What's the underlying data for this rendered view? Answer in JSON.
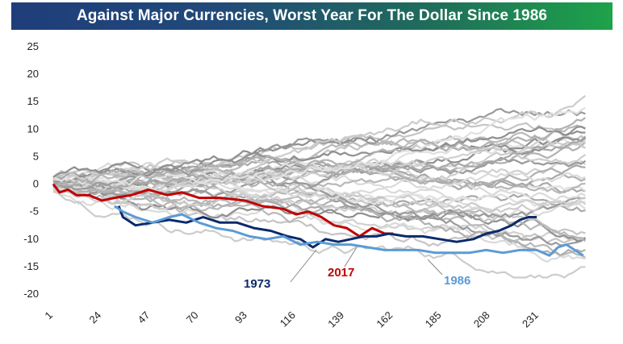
{
  "chart_data": {
    "type": "line",
    "title": "Against Major Currencies, Worst Year For The Dollar Since 1986",
    "xlabel": "",
    "ylabel": "",
    "xlim": [
      1,
      254
    ],
    "ylim": [
      -20,
      25
    ],
    "y_ticks": [
      "25",
      "20",
      "15",
      "10",
      "5",
      "0",
      "-5",
      "-10",
      "-15",
      "-20"
    ],
    "x_ticks": [
      "1",
      "24",
      "47",
      "70",
      "93",
      "116",
      "139",
      "162",
      "185",
      "208",
      "231"
    ],
    "gridlines": false,
    "legend": "none",
    "highlighted_series": [
      {
        "name": "2017",
        "color": "#c00000",
        "x": [
          1,
          4,
          8,
          12,
          18,
          24,
          30,
          38,
          46,
          55,
          62,
          70,
          80,
          92,
          100,
          110,
          116,
          122,
          128,
          134,
          140,
          146,
          152,
          158,
          162
        ],
        "values": [
          0,
          -1.5,
          -1,
          -2,
          -2,
          -3,
          -2.5,
          -2,
          -1,
          -2,
          -1.5,
          -2.5,
          -2.5,
          -3,
          -4,
          -4.5,
          -5.5,
          -5,
          -6,
          -7.5,
          -8,
          -9.5,
          -8,
          -9,
          -9
        ]
      },
      {
        "name": "1973",
        "color": "#0b2a6b",
        "x": [
          32,
          34,
          36,
          40,
          48,
          56,
          64,
          72,
          80,
          88,
          96,
          104,
          112,
          118,
          124,
          130,
          136,
          142,
          148,
          154,
          160,
          168,
          176,
          184,
          192,
          200,
          206,
          212,
          218,
          222,
          226,
          230
        ],
        "values": [
          -4,
          -6,
          -6.5,
          -7.5,
          -7,
          -6.5,
          -7,
          -6,
          -7,
          -7,
          -8,
          -8.5,
          -9.5,
          -10,
          -11.5,
          -10,
          -10.5,
          -10,
          -9.5,
          -9.5,
          -9,
          -9.5,
          -9.5,
          -10,
          -10.5,
          -10,
          -9,
          -8.5,
          -7.5,
          -6.5,
          -6,
          -6
        ]
      },
      {
        "name": "1986",
        "color": "#5b9bd5",
        "x": [
          30,
          34,
          40,
          48,
          56,
          62,
          70,
          78,
          86,
          94,
          102,
          110,
          118,
          126,
          134,
          142,
          150,
          158,
          166,
          174,
          182,
          190,
          198,
          206,
          214,
          222,
          230,
          236,
          240,
          244,
          248,
          252
        ],
        "values": [
          -4,
          -5,
          -6,
          -7,
          -6,
          -5.5,
          -7,
          -8,
          -8.5,
          -9.5,
          -10,
          -9.5,
          -11,
          -10.5,
          -11,
          -11,
          -11.5,
          -12,
          -12,
          -12,
          -12.5,
          -12.5,
          -12.5,
          -12,
          -12.5,
          -12,
          -12,
          -13,
          -11.5,
          -11,
          -12,
          -13
        ]
      }
    ],
    "background_series_color": "#bfbfbf",
    "background_series_note": "approx. 40 grey series for other years",
    "annotations": [
      "1973",
      "2017",
      "1986"
    ]
  }
}
